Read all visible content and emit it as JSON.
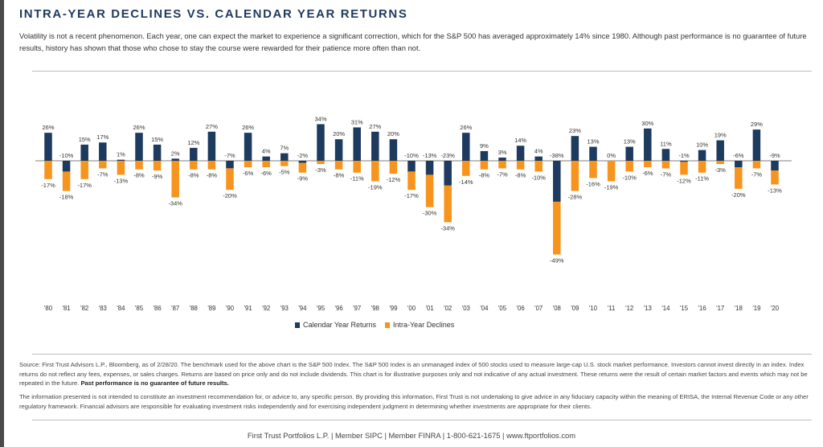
{
  "title": "INTRA-YEAR DECLINES VS. CALENDAR YEAR RETURNS",
  "subtitle": "Volatility is not a recent phenomenon. Each year, one can expect the market to experience a significant correction, which for the S&P 500 has averaged approximately 14% since 1980. Although past performance is no guarantee of future results, history has shown that those who chose to stay the course were rewarded for their patience more often than not.",
  "colors": {
    "returns": "#1d3a5f",
    "declines": "#f7941d",
    "title": "#1f3a5c"
  },
  "chart_data": {
    "type": "bar",
    "categories": [
      "'80",
      "'81",
      "'82",
      "'83",
      "'84",
      "'85",
      "'86",
      "'87",
      "'88",
      "'89",
      "'90",
      "'91",
      "'92",
      "'93",
      "'94",
      "'95",
      "'96",
      "'97",
      "'98",
      "'99",
      "'00",
      "'01",
      "'02",
      "'03",
      "'04",
      "'05",
      "'06",
      "'07",
      "'08",
      "'09",
      "'10",
      "'11",
      "'12",
      "'13",
      "'14",
      "'15",
      "'16",
      "'17",
      "'18",
      "'19",
      "'20"
    ],
    "series": [
      {
        "name": "Calendar Year Returns",
        "values": [
          26,
          -10,
          15,
          17,
          1,
          26,
          15,
          2,
          12,
          27,
          -7,
          26,
          4,
          7,
          -2,
          34,
          20,
          31,
          27,
          20,
          -10,
          -13,
          -23,
          26,
          9,
          3,
          14,
          4,
          -38,
          23,
          13,
          0,
          13,
          30,
          11,
          -1,
          10,
          19,
          -6,
          29,
          -9
        ]
      },
      {
        "name": "Intra-Year Declines",
        "values": [
          -17,
          -18,
          -17,
          -7,
          -13,
          -8,
          -9,
          -34,
          -8,
          -8,
          -20,
          -6,
          -6,
          -5,
          -9,
          -3,
          -8,
          -11,
          -19,
          -12,
          -17,
          -30,
          -34,
          -14,
          -8,
          -7,
          -8,
          -10,
          -49,
          -28,
          -16,
          -19,
          -10,
          -6,
          -7,
          -12,
          -11,
          -3,
          -20,
          -7,
          -13
        ]
      }
    ],
    "value_labels": {
      "returns": [
        "26%",
        "-10%",
        "15%",
        "17%",
        "1%",
        "26%",
        "15%",
        "2%",
        "12%",
        "27%",
        "-7%",
        "26%",
        "4%",
        "7%",
        "-2%",
        "34%",
        "20%",
        "31%",
        "27%",
        "20%",
        "-10%",
        "-13%",
        "-23%",
        "26%",
        "9%",
        "3%",
        "14%",
        "4%",
        "-38%",
        "23%",
        "13%",
        "0%",
        "13%",
        "30%",
        "11%",
        "-1%",
        "10%",
        "19%",
        "-6%",
        "29%",
        "-9%"
      ],
      "declines": [
        "-17%",
        "-18%",
        "-17%",
        "-7%",
        "-13%",
        "-8%",
        "-9%",
        "-34%",
        "-8%",
        "-8%",
        "-20%",
        "-6%",
        "-6%",
        "-5%",
        "-9%",
        "-3%",
        "-8%",
        "-11%",
        "-19%",
        "-12%",
        "-17%",
        "-30%",
        "-34%",
        "-14%",
        "-8%",
        "-7%",
        "-8%",
        "-10%",
        "-49%",
        "-28%",
        "-16%",
        "-19%",
        "-10%",
        "-6%",
        "-7%",
        "-12%",
        "-11%",
        "-3%",
        "-20%",
        "-7%",
        "-13%"
      ]
    },
    "ylim": [
      -55,
      40
    ],
    "grid": false,
    "legend": "bottom-center"
  },
  "source": "Source: First Trust Advisors L.P., Bloomberg, as of 2/28/20. The benchmark used for the above chart is the S&P 500 Index. The S&P 500 Index is an unmanaged index of 500 stocks used to measure large-cap U.S. stock market performance.  Investors cannot invest directly in an index. Index returns do not reflect any fees, expenses, or sales charges. Returns are based on price only and do not include dividends. This chart is for illustrative purposes only and not indicative of any actual investment. These returns were the result of certain market factors and events which may not be repeated in the future.",
  "source_bold": "Past performance is no guarantee of future results.",
  "info": "The information presented is not intended to constitute an investment recommendation for, or advice to, any specific person. By providing this information, First Trust is not undertaking to give advice in any fiduciary capacity within the meaning of ERISA, the Internal Revenue Code or any other regulatory framework. Financial advisors are responsible for evaluating investment risks independently and for exercising independent judgment in determining whether investments are appropriate for their clients.",
  "footer": "First Trust Portfolios L.P.  |  Member SIPC  |  Member FINRA  |  1-800-621-1675  |  www.ftportfolios.com"
}
